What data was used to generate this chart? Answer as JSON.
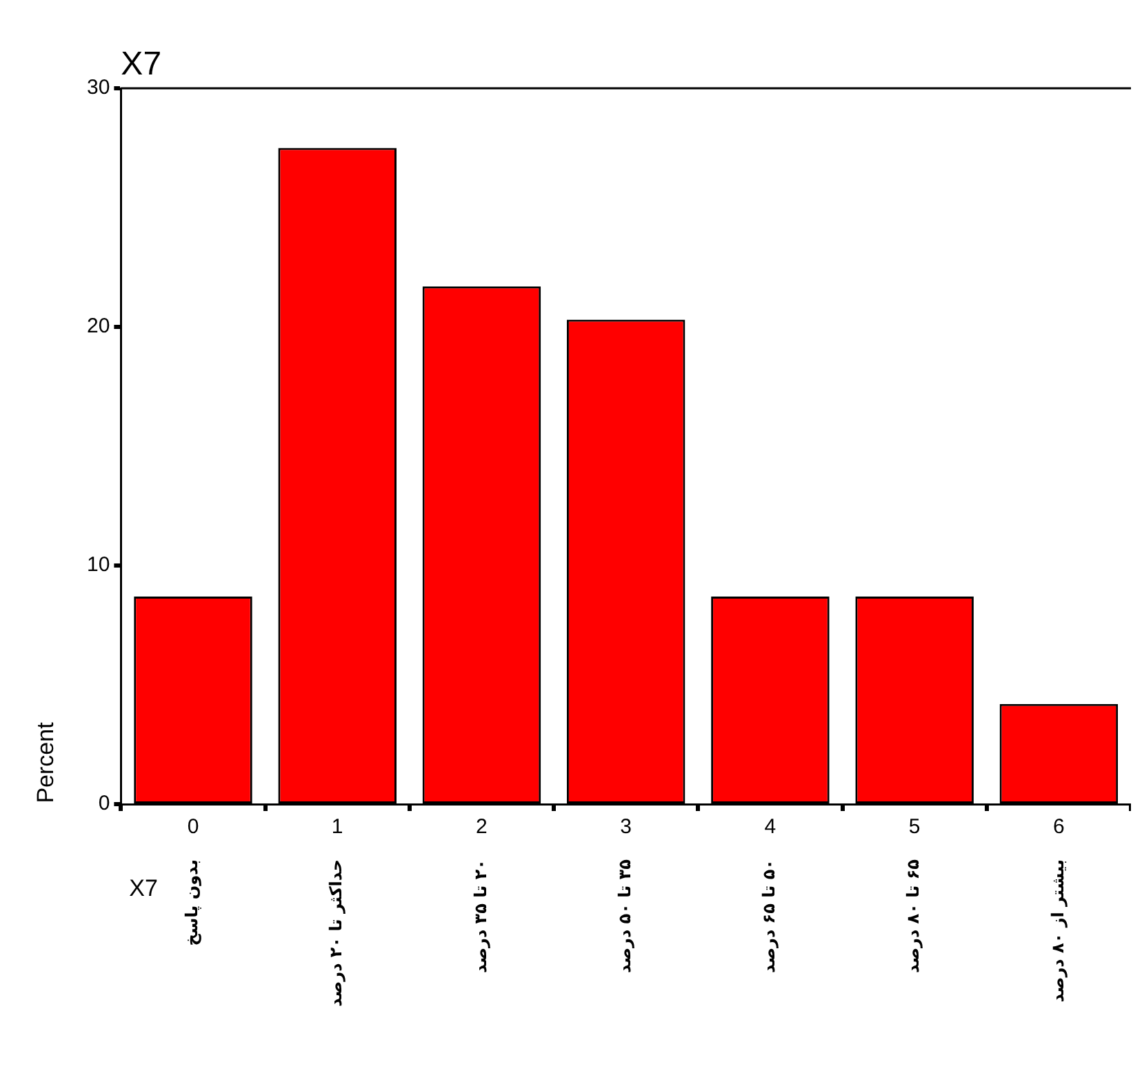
{
  "chart_data": {
    "type": "bar",
    "title": "X7",
    "xlabel": "X7",
    "ylabel": "Percent",
    "categories": [
      "0",
      "1",
      "2",
      "3",
      "4",
      "5",
      "6"
    ],
    "values": [
      8.7,
      27.5,
      21.7,
      20.3,
      8.7,
      8.7,
      4.2
    ],
    "color": "#ff0000",
    "ylim": [
      0,
      30
    ],
    "yticks": [
      0,
      10,
      20,
      30
    ],
    "grid": false,
    "legend": false,
    "annotations": [
      "بدون پاسخ",
      "حداکثر تا ۲۰ درصد",
      "۲۰ تا ۳۵ درصد",
      "۳۵ تا ۵۰ درصد",
      "۵۰ تا ۶۵ درصد",
      "۶۵ تا ۸۰ درصد",
      "بیشتر از ۸۰ درصد"
    ]
  }
}
